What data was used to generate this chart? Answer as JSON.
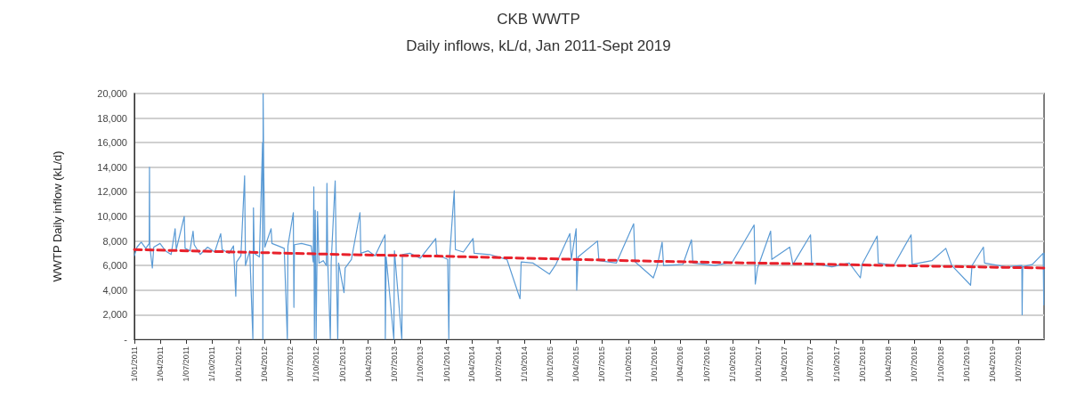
{
  "chart_data": {
    "type": "line",
    "title": "CKB WWTP",
    "subtitle": "Daily inflows, kL/d, Jan 2011-Sept 2019",
    "ylabel": "WWTP Daily inflow (kL/d)",
    "xlim": [
      "2011-01-01",
      "2019-09-30"
    ],
    "xticks": [
      {
        "value": "2011-01-01",
        "label": "1/01/2011"
      },
      {
        "value": "2011-04-01",
        "label": "1/04/2011"
      },
      {
        "value": "2011-07-01",
        "label": "1/07/2011"
      },
      {
        "value": "2011-10-01",
        "label": "1/10/2011"
      },
      {
        "value": "2012-01-01",
        "label": "1/01/2012"
      },
      {
        "value": "2012-04-01",
        "label": "1/04/2012"
      },
      {
        "value": "2012-07-01",
        "label": "1/07/2012"
      },
      {
        "value": "2012-10-01",
        "label": "1/10/2012"
      },
      {
        "value": "2013-01-01",
        "label": "1/01/2013"
      },
      {
        "value": "2013-04-01",
        "label": "1/04/2013"
      },
      {
        "value": "2013-07-01",
        "label": "1/07/2013"
      },
      {
        "value": "2013-10-01",
        "label": "1/10/2013"
      },
      {
        "value": "2014-01-01",
        "label": "1/01/2014"
      },
      {
        "value": "2014-04-01",
        "label": "1/04/2014"
      },
      {
        "value": "2014-07-01",
        "label": "1/07/2014"
      },
      {
        "value": "2014-10-01",
        "label": "1/10/2014"
      },
      {
        "value": "2015-01-01",
        "label": "1/01/2015"
      },
      {
        "value": "2015-04-01",
        "label": "1/04/2015"
      },
      {
        "value": "2015-07-01",
        "label": "1/07/2015"
      },
      {
        "value": "2015-10-01",
        "label": "1/10/2015"
      },
      {
        "value": "2016-01-01",
        "label": "1/01/2016"
      },
      {
        "value": "2016-04-01",
        "label": "1/04/2016"
      },
      {
        "value": "2016-07-01",
        "label": "1/07/2016"
      },
      {
        "value": "2016-10-01",
        "label": "1/10/2016"
      },
      {
        "value": "2017-01-01",
        "label": "1/01/2017"
      },
      {
        "value": "2017-04-01",
        "label": "1/04/2017"
      },
      {
        "value": "2017-07-01",
        "label": "1/07/2017"
      },
      {
        "value": "2017-10-01",
        "label": "1/10/2017"
      },
      {
        "value": "2018-01-01",
        "label": "1/01/2018"
      },
      {
        "value": "2018-04-01",
        "label": "1/04/2018"
      },
      {
        "value": "2018-07-01",
        "label": "1/07/2018"
      },
      {
        "value": "2018-10-01",
        "label": "1/10/2018"
      },
      {
        "value": "2019-01-01",
        "label": "1/01/2019"
      },
      {
        "value": "2019-04-01",
        "label": "1/04/2019"
      },
      {
        "value": "2019-07-01",
        "label": "1/07/2019"
      }
    ],
    "ylim": [
      0,
      20000
    ],
    "yticks": [
      {
        "value": 0,
        "label": "-"
      },
      {
        "value": 2000,
        "label": "2,000"
      },
      {
        "value": 4000,
        "label": "4,000"
      },
      {
        "value": 6000,
        "label": "6,000"
      },
      {
        "value": 8000,
        "label": "8,000"
      },
      {
        "value": 10000,
        "label": "10,000"
      },
      {
        "value": 12000,
        "label": "12,000"
      },
      {
        "value": 14000,
        "label": "14,000"
      },
      {
        "value": 16000,
        "label": "16,000"
      },
      {
        "value": 18000,
        "label": "18,000"
      },
      {
        "value": 20000,
        "label": "20,000"
      }
    ],
    "grid": "y",
    "marker": "none",
    "series": [
      {
        "color": "#5b9bd5",
        "line_style": "solid",
        "x": [
          "2011-01-01",
          "2011-01-10",
          "2011-01-25",
          "2011-02-10",
          "2011-02-22",
          "2011-02-23",
          "2011-02-24",
          "2011-03-05",
          "2011-03-10",
          "2011-04-01",
          "2011-04-20",
          "2011-05-10",
          "2011-05-24",
          "2011-05-28",
          "2011-06-25",
          "2011-06-28",
          "2011-07-15",
          "2011-07-26",
          "2011-07-30",
          "2011-08-20",
          "2011-09-15",
          "2011-10-10",
          "2011-10-31",
          "2011-11-05",
          "2011-11-30",
          "2011-12-15",
          "2011-12-23",
          "2011-12-26",
          "2012-01-10",
          "2012-01-23",
          "2012-01-26",
          "2012-02-10",
          "2012-02-21",
          "2012-02-23",
          "2012-02-26",
          "2012-03-15",
          "2012-03-26",
          "2012-03-27",
          "2012-03-28",
          "2012-03-30",
          "2012-04-03",
          "2012-04-25",
          "2012-04-28",
          "2012-05-20",
          "2012-06-10",
          "2012-06-21",
          "2012-06-23",
          "2012-07-12",
          "2012-07-14",
          "2012-07-16",
          "2012-08-10",
          "2012-09-13",
          "2012-09-20",
          "2012-09-22",
          "2012-09-24",
          "2012-09-27",
          "2012-09-30",
          "2012-10-05",
          "2012-10-10",
          "2012-10-25",
          "2012-11-05",
          "2012-11-07",
          "2012-11-10",
          "2012-11-19",
          "2012-11-22",
          "2012-12-06",
          "2012-12-10",
          "2012-12-15",
          "2012-12-18",
          "2013-01-06",
          "2013-01-10",
          "2013-02-01",
          "2013-03-03",
          "2013-03-06",
          "2013-04-01",
          "2013-04-25",
          "2013-05-30",
          "2013-05-31",
          "2013-06-03",
          "2013-06-30",
          "2013-07-02",
          "2013-07-28",
          "2013-07-30",
          "2013-08-25",
          "2013-10-01",
          "2013-11-24",
          "2013-11-27",
          "2014-01-05",
          "2014-01-09",
          "2014-01-12",
          "2014-01-28",
          "2014-02-01",
          "2014-03-01",
          "2014-04-04",
          "2014-04-08",
          "2014-06-01",
          "2014-08-01",
          "2014-09-16",
          "2014-09-20",
          "2014-11-01",
          "2014-12-28",
          "2015-01-20",
          "2015-03-10",
          "2015-03-15",
          "2015-04-01",
          "2015-04-03",
          "2015-04-08",
          "2015-06-15",
          "2015-06-20",
          "2015-08-20",
          "2015-10-20",
          "2015-10-25",
          "2015-12-28",
          "2016-01-10",
          "2016-01-28",
          "2016-02-02",
          "2016-04-10",
          "2016-05-10",
          "2016-05-15",
          "2016-08-01",
          "2016-10-01",
          "2016-12-16",
          "2016-12-20",
          "2016-12-28",
          "2017-02-12",
          "2017-02-16",
          "2017-04-20",
          "2017-05-01",
          "2017-07-02",
          "2017-07-06",
          "2017-09-15",
          "2017-11-15",
          "2017-12-24",
          "2017-12-30",
          "2018-02-21",
          "2018-02-25",
          "2018-04-20",
          "2018-06-20",
          "2018-06-24",
          "2018-09-01",
          "2018-10-20",
          "2018-11-10",
          "2019-01-15",
          "2019-01-20",
          "2019-03-01",
          "2019-03-05",
          "2019-05-20",
          "2019-07-14",
          "2019-07-15",
          "2019-07-17",
          "2019-08-20",
          "2019-09-27",
          "2019-09-29",
          "2019-09-30"
        ],
        "values": [
          6800,
          7500,
          7900,
          7400,
          7800,
          14000,
          7600,
          5800,
          7500,
          7800,
          7200,
          6900,
          9000,
          7300,
          10000,
          7400,
          7200,
          8800,
          7700,
          6900,
          7500,
          7100,
          8600,
          7300,
          7000,
          7600,
          3500,
          6300,
          6800,
          13300,
          6000,
          7200,
          0,
          10700,
          7000,
          6700,
          16000,
          0,
          20000,
          14000,
          7500,
          9000,
          7800,
          7600,
          7400,
          0,
          7600,
          10300,
          2600,
          7700,
          7800,
          7600,
          6300,
          12400,
          0,
          10500,
          0,
          10400,
          6200,
          6400,
          6000,
          12700,
          6200,
          0,
          6300,
          12900,
          6100,
          0,
          6200,
          3800,
          5800,
          6500,
          10300,
          7000,
          7200,
          6800,
          8500,
          0,
          6700,
          0,
          7200,
          0,
          6900,
          7000,
          6600,
          8200,
          6900,
          6500,
          0,
          6800,
          12100,
          7300,
          7100,
          8200,
          7000,
          6900,
          6500,
          3300,
          6300,
          6200,
          5300,
          6100,
          8600,
          6500,
          9000,
          4000,
          6700,
          8000,
          6400,
          6200,
          9400,
          6300,
          5000,
          5900,
          7900,
          6000,
          6100,
          8100,
          6200,
          6000,
          6300,
          9300,
          4500,
          5800,
          8800,
          6500,
          7500,
          6100,
          8500,
          6200,
          5900,
          6200,
          5000,
          6100,
          8400,
          6200,
          6000,
          8500,
          6100,
          6400,
          7400,
          6000,
          4400,
          6000,
          7500,
          6200,
          5900,
          6000,
          2000,
          5900,
          6100,
          7000,
          2800,
          7000
        ]
      },
      {
        "type": "line",
        "color": "#e8212b",
        "line_style": "dashed",
        "x": [
          "2011-01-01",
          "2012-01-01",
          "2013-01-01",
          "2014-01-01",
          "2015-01-01",
          "2016-01-01",
          "2017-01-01",
          "2018-01-01",
          "2019-01-01",
          "2019-09-30"
        ],
        "values": [
          7300,
          7100,
          6900,
          6750,
          6550,
          6350,
          6200,
          6050,
          5900,
          5800
        ]
      }
    ]
  }
}
